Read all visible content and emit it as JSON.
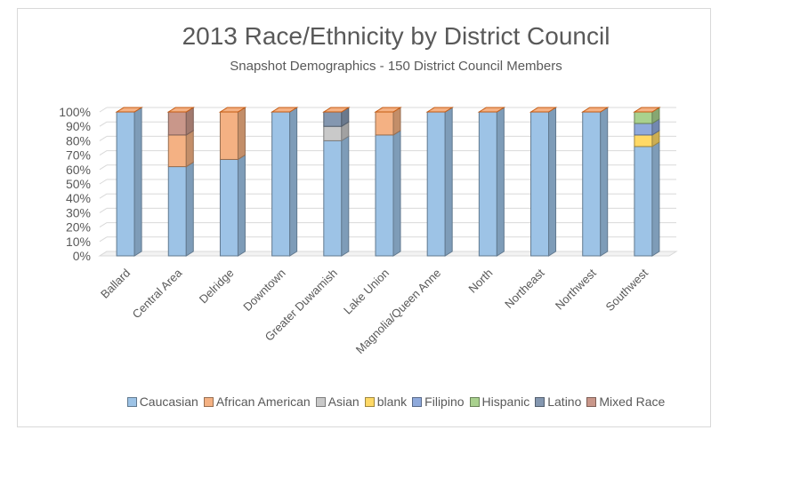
{
  "chart_data": {
    "type": "bar",
    "stacked": true,
    "percent": true,
    "title": "2013 Race/Ethnicity by District Council",
    "subtitle": "Snapshot Demographics  - 150 District Council Members",
    "categories": [
      "Ballard",
      "Central Area",
      "Delridge",
      "Downtown",
      "Greater Duwamish",
      "Lake Union",
      "Magnolia/Queen Anne",
      "North",
      "Northeast",
      "Northwest",
      "Southwest"
    ],
    "yticks": [
      "0%",
      "10%",
      "20%",
      "30%",
      "40%",
      "50%",
      "60%",
      "70%",
      "80%",
      "90%",
      "100%"
    ],
    "ylim": [
      0,
      100
    ],
    "grid": true,
    "legend_position": "bottom",
    "series": [
      {
        "name": "Caucasian",
        "color": "#9dc3e6",
        "values": [
          100,
          62,
          67,
          100,
          80,
          84,
          100,
          100,
          100,
          100,
          76
        ]
      },
      {
        "name": "African American",
        "color": "#f4b183",
        "values": [
          0,
          22,
          33,
          0,
          0,
          16,
          0,
          0,
          0,
          0,
          0
        ]
      },
      {
        "name": "Asian",
        "color": "#c9c9c9",
        "values": [
          0,
          0,
          0,
          0,
          10,
          0,
          0,
          0,
          0,
          0,
          0
        ]
      },
      {
        "name": "blank",
        "color": "#ffd966",
        "values": [
          0,
          0,
          0,
          0,
          0,
          0,
          0,
          0,
          0,
          0,
          8
        ]
      },
      {
        "name": "Filipino",
        "color": "#8faadc",
        "values": [
          0,
          0,
          0,
          0,
          0,
          0,
          0,
          0,
          0,
          0,
          8
        ]
      },
      {
        "name": "Hispanic",
        "color": "#a9d18e",
        "values": [
          0,
          0,
          0,
          0,
          0,
          0,
          0,
          0,
          0,
          0,
          8
        ]
      },
      {
        "name": "Latino",
        "color": "#8497b0",
        "values": [
          0,
          0,
          0,
          0,
          10,
          0,
          0,
          0,
          0,
          0,
          0
        ]
      },
      {
        "name": "Mixed Race",
        "color": "#c9978a",
        "values": [
          0,
          16,
          0,
          0,
          0,
          0,
          0,
          0,
          0,
          0,
          0
        ]
      }
    ]
  }
}
